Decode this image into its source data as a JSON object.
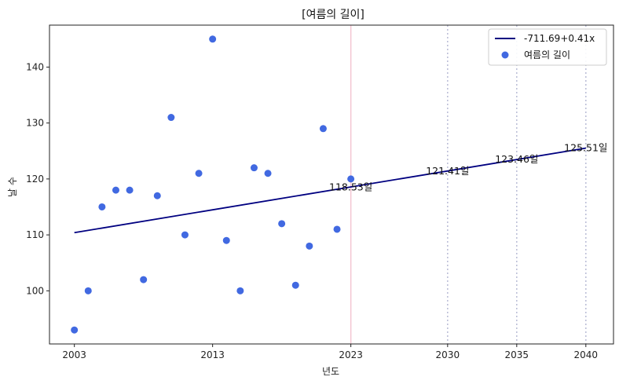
{
  "chart_data": {
    "type": "scatter",
    "title": "[여름의 길이]",
    "xlabel": "년도",
    "ylabel": "날 수",
    "xlim": [
      2001.2,
      2042.0
    ],
    "ylim": [
      90.5,
      147.5
    ],
    "x_ticks": [
      2003,
      2013,
      2023,
      2030,
      2035,
      2040
    ],
    "y_ticks": [
      100,
      110,
      120,
      130,
      140
    ],
    "grid": false,
    "legend_position": "top-right",
    "series": [
      {
        "name": "여름의 길이",
        "kind": "scatter",
        "color": "#4169e1",
        "points": [
          {
            "x": 2003,
            "y": 93
          },
          {
            "x": 2004,
            "y": 100
          },
          {
            "x": 2005,
            "y": 115
          },
          {
            "x": 2006,
            "y": 118
          },
          {
            "x": 2007,
            "y": 118
          },
          {
            "x": 2008,
            "y": 102
          },
          {
            "x": 2009,
            "y": 117
          },
          {
            "x": 2010,
            "y": 131
          },
          {
            "x": 2011,
            "y": 110
          },
          {
            "x": 2012,
            "y": 121
          },
          {
            "x": 2013,
            "y": 145
          },
          {
            "x": 2014,
            "y": 109
          },
          {
            "x": 2015,
            "y": 100
          },
          {
            "x": 2016,
            "y": 122
          },
          {
            "x": 2017,
            "y": 121
          },
          {
            "x": 2018,
            "y": 112
          },
          {
            "x": 2019,
            "y": 101
          },
          {
            "x": 2020,
            "y": 108
          },
          {
            "x": 2021,
            "y": 129
          },
          {
            "x": 2022,
            "y": 111
          },
          {
            "x": 2023,
            "y": 120
          }
        ]
      },
      {
        "name": "-711.69+0.41x",
        "kind": "line",
        "color": "#000080",
        "points": [
          {
            "x": 2003,
            "y": 110.4
          },
          {
            "x": 2040,
            "y": 125.51
          }
        ]
      }
    ],
    "vertical_lines": [
      {
        "x": 2023,
        "color": "#f4c6d2",
        "style": "solid"
      },
      {
        "x": 2030,
        "color": "#b9bcd6",
        "style": "dotted"
      },
      {
        "x": 2035,
        "color": "#b9bcd6",
        "style": "dotted"
      },
      {
        "x": 2040,
        "color": "#b9bcd6",
        "style": "dotted"
      }
    ],
    "annotations": [
      {
        "x": 2023,
        "y": 118.53,
        "text": "118.53일"
      },
      {
        "x": 2030,
        "y": 121.41,
        "text": "121.41일"
      },
      {
        "x": 2035,
        "y": 123.46,
        "text": "123.46일"
      },
      {
        "x": 2040,
        "y": 125.51,
        "text": "125.51일"
      }
    ]
  }
}
